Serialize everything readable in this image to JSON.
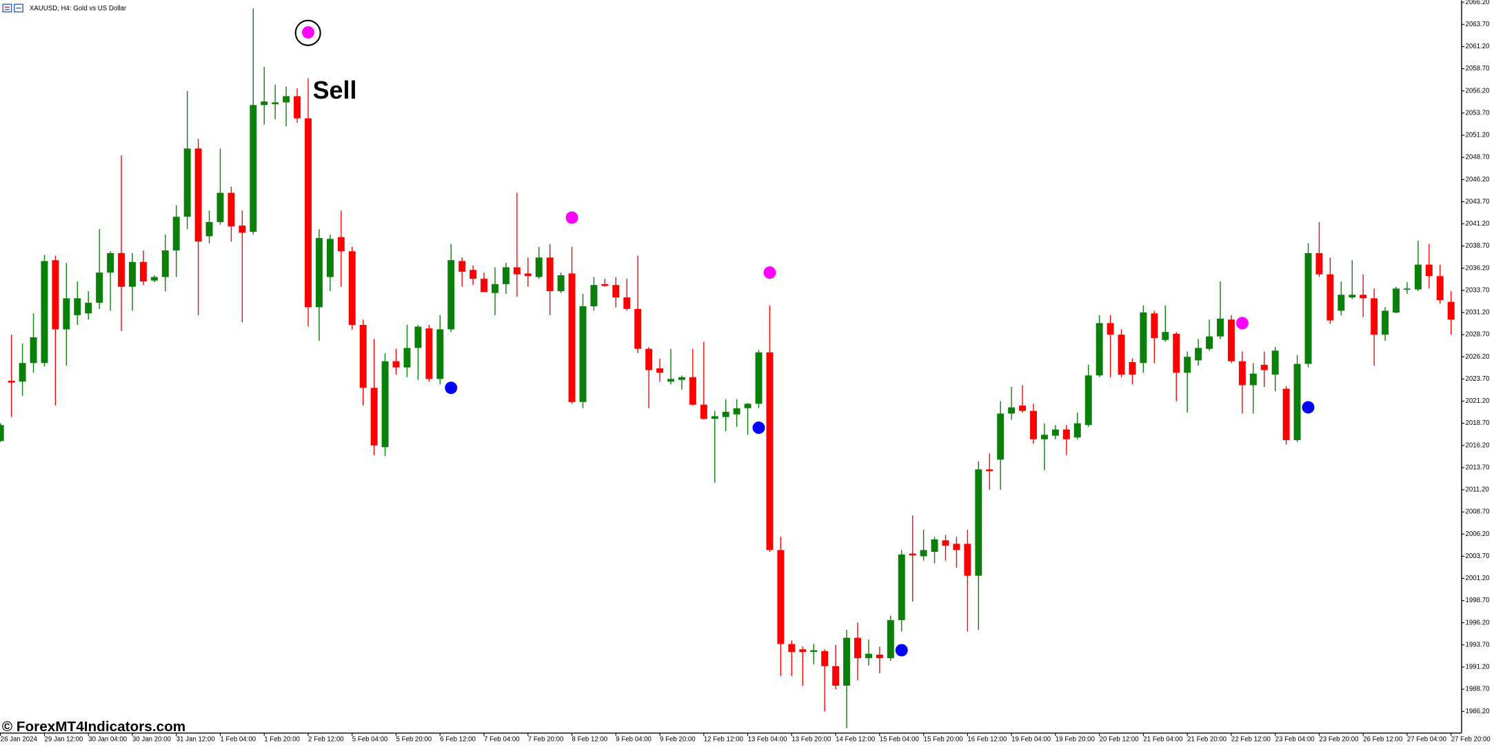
{
  "chart_data": {
    "type": "candlestick",
    "title": "XAUUSD, H4: Gold vs US Dollar",
    "annotation": "Sell",
    "watermark": "© ForexMT4Indicators.com",
    "categories": [
      "26 Jan 2024",
      null,
      null,
      null,
      "29 Jan 12:00",
      null,
      null,
      null,
      "30 Jan 04:00",
      null,
      null,
      null,
      "30 Jan 20:00",
      null,
      null,
      null,
      "31 Jan 12:00",
      null,
      null,
      null,
      "1 Feb 04:00",
      null,
      null,
      null,
      "1 Feb 20:00",
      null,
      null,
      null,
      "2 Feb 12:00",
      null,
      null,
      null,
      "5 Feb 04:00",
      null,
      null,
      null,
      "5 Feb 20:00",
      null,
      null,
      null,
      "6 Feb 12:00",
      null,
      null,
      null,
      "7 Feb 04:00",
      null,
      null,
      null,
      "7 Feb 20:00",
      null,
      null,
      null,
      "8 Feb 12:00",
      null,
      null,
      null,
      "9 Feb 04:00",
      null,
      null,
      null,
      "9 Feb 20:00",
      null,
      null,
      null,
      "12 Feb 12:00",
      null,
      null,
      null,
      "13 Feb 04:00",
      null,
      null,
      null,
      "13 Feb 20:00",
      null,
      null,
      null,
      "14 Feb 12:00",
      null,
      null,
      null,
      "15 Feb 04:00",
      null,
      null,
      null,
      "15 Feb 20:00",
      null,
      null,
      null,
      "16 Feb 12:00",
      null,
      null,
      null,
      "19 Feb 04:00",
      null,
      null,
      null,
      "19 Feb 20:00",
      null,
      null,
      null,
      "20 Feb 12:00",
      null,
      null,
      null,
      "21 Feb 04:00",
      null,
      null,
      null,
      "21 Feb 20:00",
      null,
      null,
      null,
      "22 Feb 12:00",
      null,
      null,
      null,
      "23 Feb 04:00",
      null,
      null,
      null,
      "23 Feb 20:00",
      null,
      null,
      null,
      "26 Feb 12:00",
      null,
      null,
      null,
      "27 Feb 04:00",
      null,
      null,
      null,
      "27 Feb 20:00"
    ],
    "open": [
      2016.7,
      2023.5,
      2023.4,
      2025.5,
      2025.5,
      2037.1,
      2029.3,
      2030.9,
      2031.1,
      2032.3,
      2035.7,
      2037.9,
      2034.1,
      2036.9,
      2034.8,
      2035.2,
      2038.2,
      2042.0,
      2049.7,
      2039.8,
      2041.4,
      2044.7,
      2041.0,
      2040.3,
      2054.6,
      2054.7,
      2054.9,
      2055.6,
      2053.1,
      2031.8,
      2035.2,
      2039.7,
      2038.1,
      2029.8,
      2022.7,
      2016.0,
      2025.7,
      2025.0,
      2027.2,
      2029.4,
      2023.7,
      2029.3,
      2037.0,
      2036.0,
      2035.0,
      2033.4,
      2034.4,
      2036.3,
      2035.6,
      2035.2,
      2037.4,
      2033.6,
      2035.6,
      2021.1,
      2031.9,
      2034.4,
      2034.3,
      2032.9,
      2031.6,
      2027.1,
      2024.9,
      2023.4,
      2023.6,
      2023.9,
      2020.8,
      2019.2,
      2019.4,
      2019.7,
      2020.4,
      2020.9,
      2026.7,
      2004.4,
      1993.8,
      1993.2,
      1992.9,
      1993.0,
      1991.3,
      1989.1,
      1994.5,
      1992.2,
      1992.6,
      1992.2,
      1996.5,
      2004.0,
      2003.7,
      2004.2,
      2005.5,
      2005.1,
      2005.1,
      2001.5,
      2013.5,
      2014.6,
      2019.8,
      2020.7,
      2020.1,
      2016.9,
      2017.3,
      2018.0,
      2017.1,
      2018.5,
      2024.1,
      2030.0,
      2028.7,
      2025.6,
      2025.5,
      2031.1,
      2028.1,
      2028.8,
      2024.4,
      2025.8,
      2027.1,
      2028.5,
      2030.4,
      2025.7,
      2023.0,
      2025.3,
      2024.2,
      2022.6,
      2016.8,
      2025.4,
      2037.9,
      2035.5,
      2031.4,
      2032.9,
      2033.2,
      2032.8,
      2028.7,
      2031.2,
      2033.8,
      2033.8,
      2036.6,
      2035.3,
      2032.4
    ],
    "high": [
      2018.7,
      2028.7,
      2027.7,
      2031.1,
      2037.7,
      2037.6,
      2036.8,
      2034.7,
      2033.6,
      2040.6,
      2038.1,
      2048.9,
      2037.9,
      2038.2,
      2035.4,
      2040.0,
      2043.3,
      2056.2,
      2050.8,
      2042.7,
      2049.7,
      2045.4,
      2042.7,
      2065.5,
      2058.9,
      2056.9,
      2056.7,
      2056.5,
      2057.6,
      2040.6,
      2040.0,
      2042.7,
      2038.6,
      2030.4,
      2028.2,
      2026.6,
      2027.1,
      2029.8,
      2029.8,
      2029.8,
      2030.9,
      2038.9,
      2037.4,
      2036.5,
      2035.7,
      2036.3,
      2036.8,
      2044.7,
      2037.4,
      2038.6,
      2038.9,
      2035.7,
      2038.6,
      2033.3,
      2035.2,
      2035.0,
      2035.2,
      2035.0,
      2037.6,
      2027.3,
      2026.0,
      2027.1,
      2024.1,
      2027.1,
      2027.9,
      2020.1,
      2021.4,
      2021.4,
      2021.0,
      2027.0,
      2032.0,
      2005.9,
      1994.2,
      1993.5,
      1993.8,
      1993.2,
      1993.7,
      1995.4,
      1996.2,
      1994.3,
      1993.5,
      1997.0,
      2004.4,
      2008.3,
      2006.7,
      2005.9,
      2006.1,
      2005.9,
      2006.7,
      2014.4,
      2015.3,
      2021.2,
      2022.8,
      2023.0,
      2020.9,
      2018.7,
      2018.5,
      2018.5,
      2019.9,
      2025.3,
      2030.9,
      2030.9,
      2029.3,
      2026.0,
      2032.0,
      2031.4,
      2032.0,
      2029.0,
      2026.8,
      2028.2,
      2030.4,
      2034.7,
      2030.9,
      2026.8,
      2025.5,
      2026.8,
      2027.3,
      2022.9,
      2026.4,
      2039.0,
      2041.4,
      2037.4,
      2034.7,
      2037.1,
      2035.5,
      2033.9,
      2031.8,
      2034.1,
      2034.6,
      2039.3,
      2038.9,
      2036.6,
      2033.6
    ],
    "low": [
      2016.6,
      2019.4,
      2021.8,
      2024.4,
      2025.1,
      2020.7,
      2025.2,
      2029.8,
      2030.4,
      2031.6,
      2031.4,
      2029.1,
      2031.4,
      2034.3,
      2034.6,
      2033.6,
      2035.2,
      2040.6,
      2030.9,
      2039.0,
      2041.1,
      2039.2,
      2030.1,
      2040.0,
      2052.4,
      2053.0,
      2052.2,
      2052.6,
      2029.6,
      2028.0,
      2033.6,
      2034.1,
      2029.3,
      2020.7,
      2015.1,
      2015.0,
      2024.2,
      2023.9,
      2023.6,
      2023.4,
      2023.1,
      2029.0,
      2034.1,
      2034.3,
      2033.5,
      2030.9,
      2033.3,
      2033.0,
      2034.1,
      2035.0,
      2030.9,
      2033.4,
      2020.9,
      2020.4,
      2031.4,
      2034.1,
      2031.8,
      2031.4,
      2026.6,
      2020.4,
      2023.4,
      2023.1,
      2022.5,
      2020.7,
      2019.1,
      2012.0,
      2017.8,
      2018.3,
      2017.4,
      2020.4,
      2004.2,
      1990.2,
      1990.2,
      1989.1,
      1991.5,
      1986.2,
      1988.7,
      1984.3,
      1989.7,
      1991.4,
      1990.5,
      1991.9,
      1995.2,
      1998.6,
      2003.2,
      2002.9,
      2003.2,
      2002.4,
      1995.2,
      1995.4,
      2011.2,
      2011.2,
      2019.1,
      2019.9,
      2016.4,
      2013.4,
      2016.9,
      2015.1,
      2016.9,
      2018.3,
      2023.9,
      2023.9,
      2023.9,
      2023.1,
      2024.4,
      2025.5,
      2027.9,
      2021.2,
      2019.9,
      2025.2,
      2026.9,
      2028.2,
      2025.5,
      2019.8,
      2019.8,
      2022.8,
      2022.3,
      2016.3,
      2016.6,
      2025.0,
      2035.2,
      2029.9,
      2030.9,
      2032.7,
      2030.7,
      2025.2,
      2028.0,
      2031.1,
      2033.3,
      2033.6,
      2033.9,
      2032.2,
      2028.7
    ],
    "close": [
      2018.5,
      2023.3,
      2025.5,
      2028.4,
      2037.0,
      2029.3,
      2032.8,
      2032.8,
      2032.3,
      2035.7,
      2037.9,
      2034.1,
      2036.9,
      2034.7,
      2035.2,
      2038.2,
      2042.0,
      2049.7,
      2039.2,
      2041.4,
      2044.7,
      2040.9,
      2040.2,
      2054.6,
      2055.0,
      2054.9,
      2055.6,
      2053.1,
      2031.8,
      2039.6,
      2039.5,
      2038.1,
      2029.8,
      2022.7,
      2016.2,
      2025.7,
      2025.0,
      2027.2,
      2029.6,
      2023.7,
      2029.3,
      2037.1,
      2035.8,
      2035.0,
      2033.5,
      2034.4,
      2036.3,
      2035.5,
      2035.3,
      2037.4,
      2033.6,
      2035.4,
      2021.1,
      2031.9,
      2034.3,
      2034.2,
      2032.9,
      2031.6,
      2027.1,
      2024.7,
      2024.4,
      2023.7,
      2023.9,
      2020.8,
      2019.2,
      2019.5,
      2020.0,
      2020.4,
      2020.9,
      2026.7,
      2004.4,
      1993.8,
      1992.9,
      1992.9,
      1993.1,
      1991.3,
      1989.1,
      1994.5,
      1992.2,
      1992.7,
      1992.2,
      1996.5,
      2003.9,
      2003.8,
      2004.4,
      2005.6,
      2004.9,
      2004.4,
      2001.5,
      2013.5,
      2013.3,
      2019.8,
      2020.5,
      2020.1,
      2016.9,
      2017.4,
      2018.0,
      2016.9,
      2018.7,
      2024.1,
      2030.0,
      2028.7,
      2024.2,
      2024.2,
      2031.2,
      2028.3,
      2029.0,
      2024.4,
      2026.2,
      2027.2,
      2028.5,
      2030.5,
      2025.7,
      2023.0,
      2024.3,
      2024.7,
      2026.9,
      2016.8,
      2025.4,
      2037.9,
      2035.5,
      2030.3,
      2033.2,
      2033.2,
      2032.8,
      2028.7,
      2031.4,
      2033.9,
      2033.9,
      2036.6,
      2035.3,
      2032.6,
      2030.4
    ],
    "up_color": "#0a800a",
    "down_color": "#ff0000",
    "sell_signals": {
      "color": "#ff00ff",
      "values": [
        null,
        null,
        null,
        null,
        null,
        null,
        null,
        null,
        null,
        null,
        null,
        null,
        null,
        null,
        null,
        null,
        null,
        null,
        null,
        null,
        null,
        null,
        null,
        null,
        null,
        null,
        null,
        null,
        2062.8,
        null,
        null,
        null,
        null,
        null,
        null,
        null,
        null,
        null,
        null,
        null,
        null,
        null,
        null,
        null,
        null,
        null,
        null,
        null,
        null,
        null,
        null,
        null,
        2041.9,
        null,
        null,
        null,
        null,
        null,
        null,
        null,
        null,
        null,
        null,
        null,
        null,
        null,
        null,
        null,
        null,
        null,
        2035.7,
        null,
        null,
        null,
        null,
        null,
        null,
        null,
        null,
        null,
        null,
        null,
        null,
        null,
        null,
        null,
        null,
        null,
        null,
        null,
        null,
        null,
        null,
        null,
        null,
        null,
        null,
        null,
        null,
        null,
        null,
        null,
        null,
        null,
        null,
        null,
        null,
        null,
        null,
        null,
        null,
        null,
        null,
        2030.0,
        null,
        null,
        null,
        null,
        null,
        null,
        null,
        null,
        null,
        null,
        null,
        null,
        null,
        null,
        null,
        null,
        null,
        null,
        null
      ]
    },
    "buy_signals": {
      "color": "#0000ff",
      "values": [
        null,
        null,
        null,
        null,
        null,
        null,
        null,
        null,
        null,
        null,
        null,
        null,
        null,
        null,
        null,
        null,
        null,
        null,
        null,
        null,
        null,
        null,
        null,
        null,
        null,
        null,
        null,
        null,
        null,
        null,
        null,
        null,
        null,
        null,
        null,
        null,
        null,
        null,
        null,
        null,
        null,
        2022.7,
        null,
        null,
        null,
        null,
        null,
        null,
        null,
        null,
        null,
        null,
        null,
        null,
        null,
        null,
        null,
        null,
        null,
        null,
        null,
        null,
        null,
        null,
        null,
        null,
        null,
        null,
        null,
        2018.2,
        null,
        null,
        null,
        null,
        null,
        null,
        null,
        null,
        null,
        null,
        null,
        null,
        1993.1,
        null,
        null,
        null,
        null,
        null,
        null,
        null,
        null,
        null,
        null,
        null,
        null,
        null,
        null,
        null,
        null,
        null,
        null,
        null,
        null,
        null,
        null,
        null,
        null,
        null,
        null,
        null,
        null,
        null,
        null,
        null,
        null,
        null,
        null,
        null,
        null,
        2020.5,
        null,
        null,
        null,
        null,
        null,
        null,
        null,
        null,
        null,
        null,
        null,
        null,
        null
      ]
    },
    "ylim": [
      1983.75,
      2066.4
    ],
    "yticks": [
      {
        "value": 2066.2,
        "label": "2066.20"
      },
      {
        "value": 2063.7,
        "label": "2063.70"
      },
      {
        "value": 2061.2,
        "label": "2061.20"
      },
      {
        "value": 2058.7,
        "label": "2058.70"
      },
      {
        "value": 2056.2,
        "label": "2056.20"
      },
      {
        "value": 2053.7,
        "label": "2053.70"
      },
      {
        "value": 2051.2,
        "label": "2051.20"
      },
      {
        "value": 2048.7,
        "label": "2048.70"
      },
      {
        "value": 2046.2,
        "label": "2046.20"
      },
      {
        "value": 2043.7,
        "label": "2043.70"
      },
      {
        "value": 2041.2,
        "label": "2041.20"
      },
      {
        "value": 2038.7,
        "label": "2038.70"
      },
      {
        "value": 2036.2,
        "label": "2036.20"
      },
      {
        "value": 2033.7,
        "label": "2033.70"
      },
      {
        "value": 2031.2,
        "label": "2031.20"
      },
      {
        "value": 2028.7,
        "label": "2028.70"
      },
      {
        "value": 2026.2,
        "label": "2026.20"
      },
      {
        "value": 2023.7,
        "label": "2023.70"
      },
      {
        "value": 2021.2,
        "label": "2021.20"
      },
      {
        "value": 2018.7,
        "label": "2018.70"
      },
      {
        "value": 2016.2,
        "label": "2016.20"
      },
      {
        "value": 2013.7,
        "label": "2013.70"
      },
      {
        "value": 2011.2,
        "label": "2011.20"
      },
      {
        "value": 2008.7,
        "label": "2008.70"
      },
      {
        "value": 2006.2,
        "label": "2006.20"
      },
      {
        "value": 2003.7,
        "label": "2003.70"
      },
      {
        "value": 2001.2,
        "label": "2001.20"
      },
      {
        "value": 1998.7,
        "label": "1998.70"
      },
      {
        "value": 1996.2,
        "label": "1996.20"
      },
      {
        "value": 1993.7,
        "label": "1993.70"
      },
      {
        "value": 1991.2,
        "label": "1991.20"
      },
      {
        "value": 1988.7,
        "label": "1988.70"
      },
      {
        "value": 1986.2,
        "label": "1986.20"
      }
    ],
    "grid": false
  }
}
